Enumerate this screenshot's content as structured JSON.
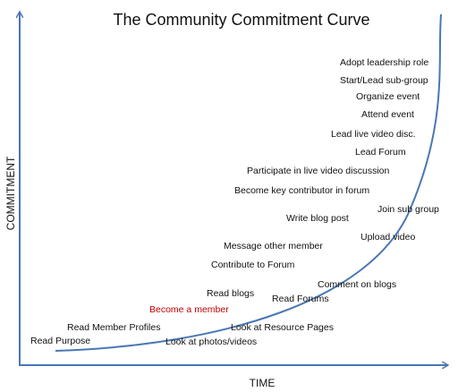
{
  "title": "The Community Commitment Curve",
  "y_axis_label": "COMMITMENT",
  "x_axis_label": "TIME",
  "nodes": [
    {
      "label": "Adopt leadership role"
    },
    {
      "label": "Start/Lead sub-group"
    },
    {
      "label": "Organize event"
    },
    {
      "label": "Attend event"
    },
    {
      "label": "Lead live video disc."
    },
    {
      "label": "Lead Forum"
    },
    {
      "label": "Participate in live video discussion"
    },
    {
      "label": "Become key contributor in forum"
    },
    {
      "label": "Join sub group"
    },
    {
      "label": "Write blog post"
    },
    {
      "label": "Upload video"
    },
    {
      "label": "Message other member"
    },
    {
      "label": "Contribute to Forum"
    },
    {
      "label": "Comment on blogs"
    },
    {
      "label": "Read blogs"
    },
    {
      "label": "Read Forums"
    },
    {
      "label": "Become a member",
      "color": "#c00000"
    },
    {
      "label": "Look at Resource Pages"
    },
    {
      "label": "Read Member Profiles"
    },
    {
      "label": "Look at photos/videos"
    },
    {
      "label": "Read Purpose"
    }
  ]
}
